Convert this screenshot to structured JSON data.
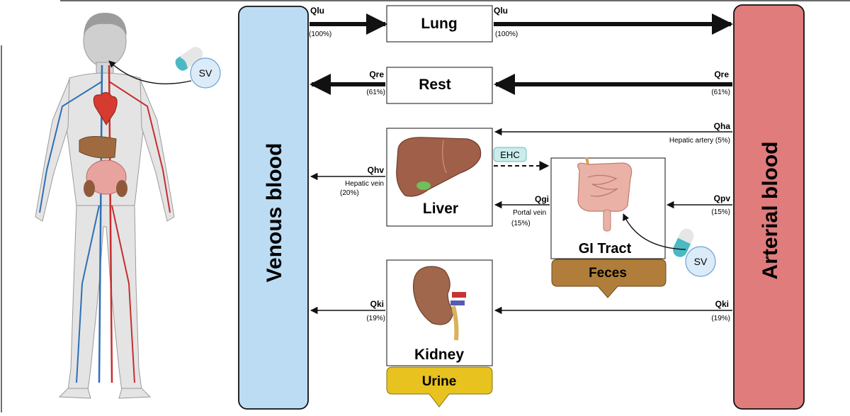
{
  "blood": {
    "venous": "Venous blood",
    "arterial": "Arterial blood"
  },
  "organs": {
    "lung": "Lung",
    "rest": "Rest",
    "liver": "Liver",
    "gi": "GI Tract",
    "kidney": "Kidney"
  },
  "excretion": {
    "feces": "Feces",
    "urine": "Urine"
  },
  "dosing": {
    "sv_top": "SV",
    "sv_gi": "SV",
    "ehc": "EHC"
  },
  "flows": {
    "qlu_left": {
      "label": "Qlu",
      "pct": "(100%)"
    },
    "qlu_right": {
      "label": "Qlu",
      "pct": "(100%)"
    },
    "qre_left": {
      "label": "Qre",
      "pct": "(61%)"
    },
    "qre_right": {
      "label": "Qre",
      "pct": "(61%)"
    },
    "qha": {
      "label": "Qha",
      "desc": "Hepatic artery (5%)"
    },
    "qhv": {
      "label": "Qhv",
      "desc": "Hepatic vein",
      "pct": "(20%)"
    },
    "qgi": {
      "label": "Qgi",
      "desc": "Portal vein",
      "pct": "(15%)"
    },
    "qpv": {
      "label": "Qpv",
      "pct": "(15%)"
    },
    "qki_left": {
      "label": "Qki",
      "pct": "(19%)"
    },
    "qki_right": {
      "label": "Qki",
      "pct": "(19%)"
    }
  },
  "colors": {
    "venous": "#bcdcf3",
    "arterial": "#e07c7c",
    "feces": "#b07e3a",
    "urine": "#e8c21e",
    "ehc": "#c9ecec",
    "sv": "#dcebf8"
  }
}
